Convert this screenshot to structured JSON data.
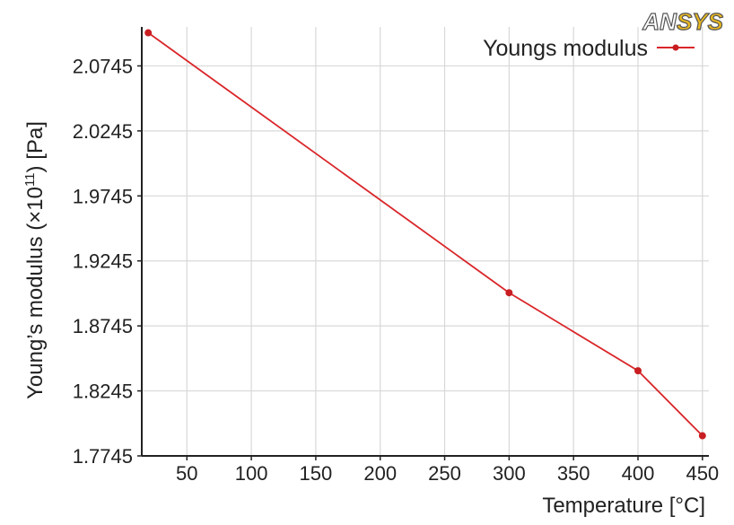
{
  "logo": {
    "part1": "AN",
    "part2": "SYS"
  },
  "chart_data": {
    "type": "line",
    "title": "",
    "xlabel": "Temperature [°C]",
    "ylabel_prefix": "Young’s modulus (×10",
    "ylabel_exponent": "11",
    "ylabel_suffix": ") [Pa]",
    "xlim": [
      15,
      455
    ],
    "ylim": [
      1.7745,
      2.1045
    ],
    "x_ticks": [
      50,
      100,
      150,
      200,
      250,
      300,
      350,
      400,
      450
    ],
    "y_ticks": [
      1.7745,
      1.8245,
      1.8745,
      1.9245,
      1.9745,
      2.0245,
      2.0745
    ],
    "y_tick_labels": [
      "1.7745",
      "1.8245",
      "1.8745",
      "1.9245",
      "1.9745",
      "2.0245",
      "2.0745"
    ],
    "grid": true,
    "legend_position": "top-right",
    "series": [
      {
        "name": "Youngs modulus",
        "color": "#d9262a",
        "x": [
          20,
          300,
          400,
          450
        ],
        "y": [
          2.1,
          1.9,
          1.84,
          1.79
        ]
      }
    ]
  }
}
